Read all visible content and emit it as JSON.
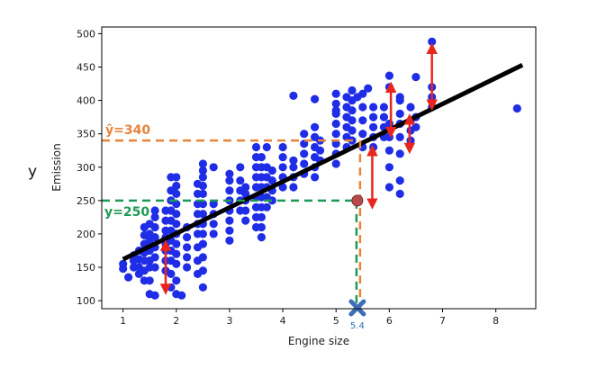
{
  "side_label": "y",
  "chart_data": {
    "type": "scatter",
    "title": "",
    "xlabel": "Engine size",
    "ylabel": "Emission",
    "xlim": [
      0.6,
      8.75
    ],
    "ylim": [
      88,
      510
    ],
    "xticks": [
      1,
      2,
      3,
      4,
      5,
      6,
      7,
      8
    ],
    "yticks": [
      100,
      150,
      200,
      250,
      300,
      350,
      400,
      450,
      500
    ],
    "grid": false,
    "legend": "none",
    "colors": {
      "points": "#1f2de6",
      "line": "#000000",
      "residual": "#e8261d",
      "prediction": "#e8843a",
      "actual": "#1e9a55",
      "marker": "#3d6fb8"
    },
    "scatter_columns": [
      {
        "x": 1.0,
        "y": [
          148,
          155
        ]
      },
      {
        "x": 1.2,
        "y": [
          150,
          160,
          168
        ]
      },
      {
        "x": 1.3,
        "y": [
          140,
          150,
          162,
          175
        ]
      },
      {
        "x": 1.4,
        "y": [
          130,
          145,
          160,
          172,
          185,
          198,
          210
        ]
      },
      {
        "x": 1.5,
        "y": [
          110,
          130,
          150,
          160,
          175,
          190,
          200,
          215
        ]
      },
      {
        "x": 1.6,
        "y": [
          150,
          165,
          180,
          195,
          210,
          225,
          235
        ]
      },
      {
        "x": 1.8,
        "y": [
          145,
          160,
          175,
          185,
          195,
          205,
          220,
          235
        ]
      },
      {
        "x": 1.9,
        "y": [
          120,
          140,
          160,
          175,
          190,
          205,
          220,
          235,
          250,
          265,
          285
        ]
      },
      {
        "x": 2.0,
        "y": [
          110,
          130,
          155,
          170,
          185,
          200,
          215,
          230,
          245,
          260,
          272,
          285
        ]
      },
      {
        "x": 2.2,
        "y": [
          150,
          165,
          180,
          195,
          210
        ]
      },
      {
        "x": 2.4,
        "y": [
          140,
          160,
          180,
          200,
          215,
          230,
          245,
          260,
          275
        ]
      },
      {
        "x": 2.5,
        "y": [
          120,
          145,
          165,
          185,
          200,
          215,
          230,
          245,
          260,
          272,
          285,
          295,
          305
        ]
      },
      {
        "x": 2.7,
        "y": [
          200,
          215,
          230,
          245
        ]
      },
      {
        "x": 3.0,
        "y": [
          190,
          205,
          220,
          235,
          250,
          265,
          280,
          290
        ]
      },
      {
        "x": 3.2,
        "y": [
          235,
          250,
          265,
          280,
          300
        ]
      },
      {
        "x": 3.3,
        "y": [
          220,
          235,
          250,
          260,
          270
        ]
      },
      {
        "x": 3.5,
        "y": [
          210,
          225,
          240,
          255,
          270,
          285,
          300,
          315,
          330
        ]
      },
      {
        "x": 3.6,
        "y": [
          195,
          210,
          225,
          240,
          255,
          270,
          285,
          300,
          315
        ]
      },
      {
        "x": 3.7,
        "y": [
          240,
          255,
          270,
          285,
          300
        ]
      },
      {
        "x": 3.8,
        "y": [
          250,
          265,
          280,
          295
        ]
      },
      {
        "x": 4.0,
        "y": [
          270,
          285,
          300,
          315,
          330
        ]
      },
      {
        "x": 4.2,
        "y": [
          270,
          285,
          300,
          310
        ]
      },
      {
        "x": 4.4,
        "y": [
          290,
          305,
          320,
          335,
          350
        ]
      },
      {
        "x": 4.6,
        "y": [
          285,
          300,
          315,
          330,
          345,
          360
        ]
      },
      {
        "x": 4.7,
        "y": [
          310,
          325,
          340
        ]
      },
      {
        "x": 5.0,
        "y": [
          305,
          320,
          335,
          350,
          365,
          380,
          395,
          410
        ]
      },
      {
        "x": 5.2,
        "y": [
          330,
          345,
          360,
          375,
          390,
          405
        ]
      },
      {
        "x": 5.3,
        "y": [
          340,
          355,
          370,
          385,
          400,
          415
        ]
      },
      {
        "x": 5.5,
        "y": [
          330,
          350,
          370,
          390,
          410
        ]
      },
      {
        "x": 5.7,
        "y": [
          330,
          345,
          360,
          375,
          390
        ]
      },
      {
        "x": 5.9,
        "y": [
          345,
          360,
          375,
          390
        ]
      },
      {
        "x": 6.0,
        "y": [
          270,
          300,
          325,
          345,
          365
        ]
      },
      {
        "x": 6.2,
        "y": [
          260,
          280,
          320,
          345,
          365,
          380,
          400
        ]
      },
      {
        "x": 6.4,
        "y": [
          340,
          355,
          370,
          390
        ]
      },
      {
        "x": 6.5,
        "y": [
          360,
          375
        ]
      },
      {
        "x": 6.8,
        "y": [
          390,
          405,
          420
        ]
      }
    ],
    "scatter_points": [
      {
        "x": 4.2,
        "y": 407
      },
      {
        "x": 4.6,
        "y": 402
      },
      {
        "x": 5.0,
        "y": 385
      },
      {
        "x": 5.4,
        "y": 405
      },
      {
        "x": 5.6,
        "y": 418
      },
      {
        "x": 6.0,
        "y": 420
      },
      {
        "x": 6.0,
        "y": 437
      },
      {
        "x": 6.2,
        "y": 405
      },
      {
        "x": 6.5,
        "y": 435
      },
      {
        "x": 6.8,
        "y": 488
      },
      {
        "x": 8.4,
        "y": 388
      },
      {
        "x": 3.7,
        "y": 330
      },
      {
        "x": 2.7,
        "y": 300
      },
      {
        "x": 1.1,
        "y": 135
      },
      {
        "x": 1.6,
        "y": 108
      },
      {
        "x": 2.1,
        "y": 108
      }
    ],
    "regression_line": {
      "x": [
        1.0,
        8.5
      ],
      "y": [
        162,
        453
      ]
    },
    "residuals": [
      {
        "x": 1.8,
        "from": 183,
        "to": 117
      },
      {
        "x": 5.68,
        "from": 325,
        "to": 245
      },
      {
        "x": 6.03,
        "from": 420,
        "to": 352
      },
      {
        "x": 6.38,
        "from": 372,
        "to": 328
      },
      {
        "x": 6.8,
        "from": 478,
        "to": 393
      }
    ],
    "highlight": {
      "x": 5.4,
      "x_label": "5.4",
      "y_hat": 340,
      "y_hat_label": "ŷ=340",
      "y_actual": 250,
      "y_actual_label": "y=250"
    }
  }
}
